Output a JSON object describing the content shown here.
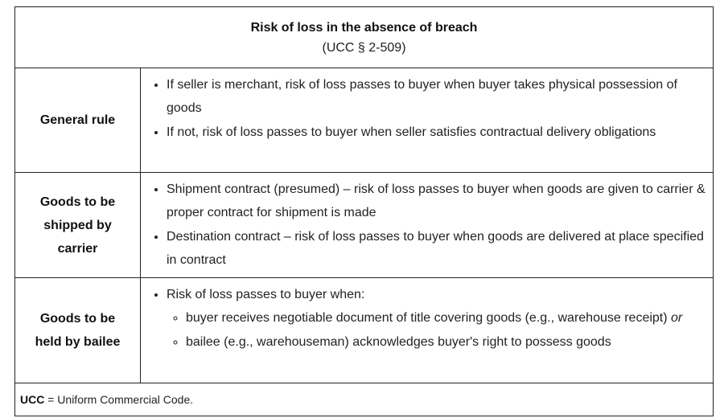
{
  "table": {
    "title": "Risk of loss in the absence of breach",
    "subtitle": "(UCC § 2-509)",
    "rows": [
      {
        "label": "General rule",
        "bullets": [
          "If seller is merchant, risk of loss passes to buyer when buyer takes physical possession of goods",
          "If not, risk of loss passes to buyer when seller satisfies contractual delivery obligations"
        ]
      },
      {
        "label": "Goods to be shipped by carrier",
        "bullets": [
          "Shipment contract (presumed) – risk of loss passes to buyer when goods are given to carrier & proper contract for shipment is made",
          "Destination contract – risk of loss passes to buyer when goods are delivered at place specified in contract"
        ]
      },
      {
        "label": "Goods to be held by bailee",
        "intro": "Risk of loss passes to buyer when:",
        "sub_bullets": [
          {
            "text": "buyer receives negotiable document of title covering goods (e.g., warehouse receipt)",
            "connector": "or"
          },
          {
            "text": "bailee (e.g., warehouseman) acknowledges buyer's right to possess goods"
          }
        ]
      }
    ],
    "footnote": {
      "abbr": "UCC",
      "definition": "= Uniform Commercial Code."
    }
  }
}
